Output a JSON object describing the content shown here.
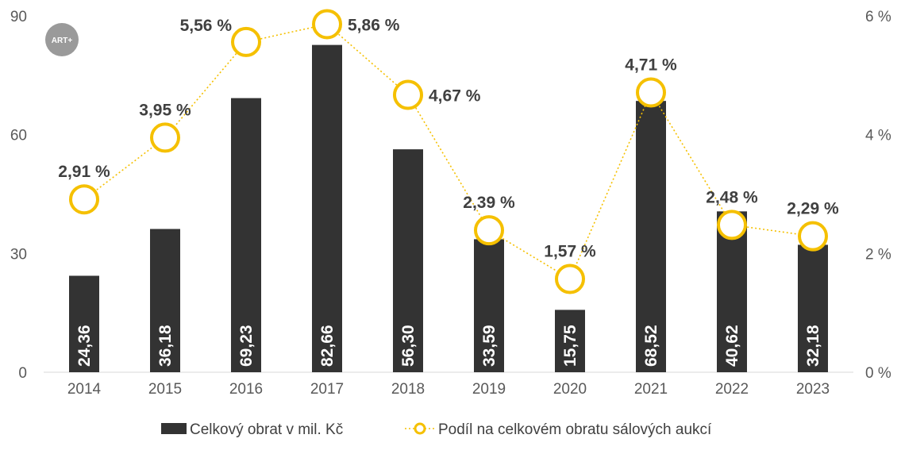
{
  "logo": {
    "text": "ART+"
  },
  "chart_data": {
    "type": "bar",
    "categories": [
      "2014",
      "2015",
      "2016",
      "2017",
      "2018",
      "2019",
      "2020",
      "2021",
      "2022",
      "2023"
    ],
    "series": [
      {
        "name": "Celkový obrat v mil. Kč",
        "type": "bar",
        "axis": "left",
        "color": "#333333",
        "values": [
          24.36,
          36.18,
          69.23,
          82.66,
          56.3,
          33.59,
          15.75,
          68.52,
          40.62,
          32.18
        ],
        "labels": [
          "24,36",
          "36,18",
          "69,23",
          "82,66",
          "56,30",
          "33,59",
          "15,75",
          "68,52",
          "40,62",
          "32,18"
        ]
      },
      {
        "name": "Podíl na celkovém obratu sálových aukcí",
        "type": "line",
        "axis": "right",
        "color": "#F5C000",
        "values": [
          2.91,
          3.95,
          5.56,
          5.86,
          4.67,
          2.39,
          1.57,
          4.71,
          2.48,
          2.29
        ],
        "labels": [
          "2,91 %",
          "3,95 %",
          "5,56 %",
          "5,86 %",
          "4,67 %",
          "2,39 %",
          "1,57 %",
          "4,71 %",
          "2,48 %",
          "2,29 %"
        ]
      }
    ],
    "y_left": {
      "min": 0,
      "max": 90,
      "ticks": [
        "0",
        "30",
        "60",
        "90"
      ]
    },
    "y_right": {
      "min": 0,
      "max": 6,
      "ticks": [
        "0 %",
        "2 %",
        "4 %",
        "6 %"
      ]
    },
    "grid": false,
    "legend": "bottom"
  }
}
